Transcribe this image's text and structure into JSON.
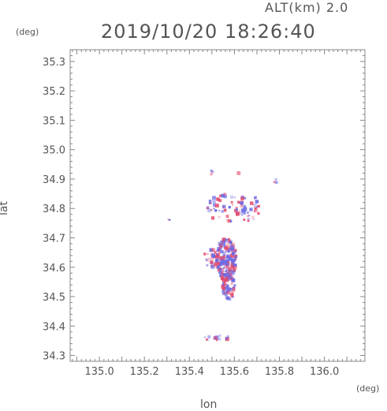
{
  "header": {
    "alt_label": "ALT(km) 2.0",
    "time_label": "2019/10/20 18:26:40"
  },
  "chart_data": {
    "type": "heatmap",
    "title": "2019/10/20 18:26:40",
    "subtitle": "ALT(km) 2.0",
    "xlabel": "lon",
    "ylabel": "lat",
    "x_unit": "(deg)",
    "y_unit": "(deg)",
    "xlim": [
      134.87,
      136.18
    ],
    "ylim": [
      34.28,
      35.34
    ],
    "x_ticks": [
      135.0,
      135.2,
      135.4,
      135.6,
      135.8,
      136.0
    ],
    "x_tick_labels": [
      "135.0",
      "135.2",
      "135.4",
      "135.6",
      "135.8",
      "136.0"
    ],
    "y_ticks": [
      34.3,
      34.4,
      34.5,
      34.6,
      34.7,
      34.8,
      34.9,
      35.0,
      35.1,
      35.2,
      35.3
    ],
    "y_tick_labels": [
      "34.3",
      "34.4",
      "34.5",
      "34.6",
      "34.7",
      "34.8",
      "34.9",
      "35.0",
      "35.1",
      "35.2",
      "35.3"
    ],
    "grid": false,
    "colors": {
      "negative": "#6a6ae6",
      "positive": "#e64a6a",
      "axis": "#888888"
    },
    "clusters": [
      {
        "lon": 135.565,
        "lat": 34.625,
        "rlon": 0.045,
        "rlat": 0.075,
        "n": 260
      },
      {
        "lon": 135.575,
        "lat": 34.53,
        "rlon": 0.03,
        "rlat": 0.04,
        "n": 70
      },
      {
        "lon": 135.5,
        "lat": 34.63,
        "rlon": 0.04,
        "rlat": 0.03,
        "n": 30
      },
      {
        "lon": 135.56,
        "lat": 34.8,
        "rlon": 0.08,
        "rlat": 0.05,
        "n": 45
      },
      {
        "lon": 135.66,
        "lat": 34.8,
        "rlon": 0.05,
        "rlat": 0.05,
        "n": 40
      },
      {
        "lon": 135.52,
        "lat": 34.36,
        "rlon": 0.06,
        "rlat": 0.01,
        "n": 14
      },
      {
        "lon": 135.5,
        "lat": 34.92,
        "rlon": 0.01,
        "rlat": 0.01,
        "n": 4
      },
      {
        "lon": 135.78,
        "lat": 34.89,
        "rlon": 0.02,
        "rlat": 0.01,
        "n": 3
      },
      {
        "lon": 135.31,
        "lat": 34.765,
        "rlon": 0.005,
        "rlat": 0.005,
        "n": 2
      },
      {
        "lon": 135.62,
        "lat": 34.92,
        "rlon": 0.005,
        "rlat": 0.005,
        "n": 1
      }
    ]
  }
}
